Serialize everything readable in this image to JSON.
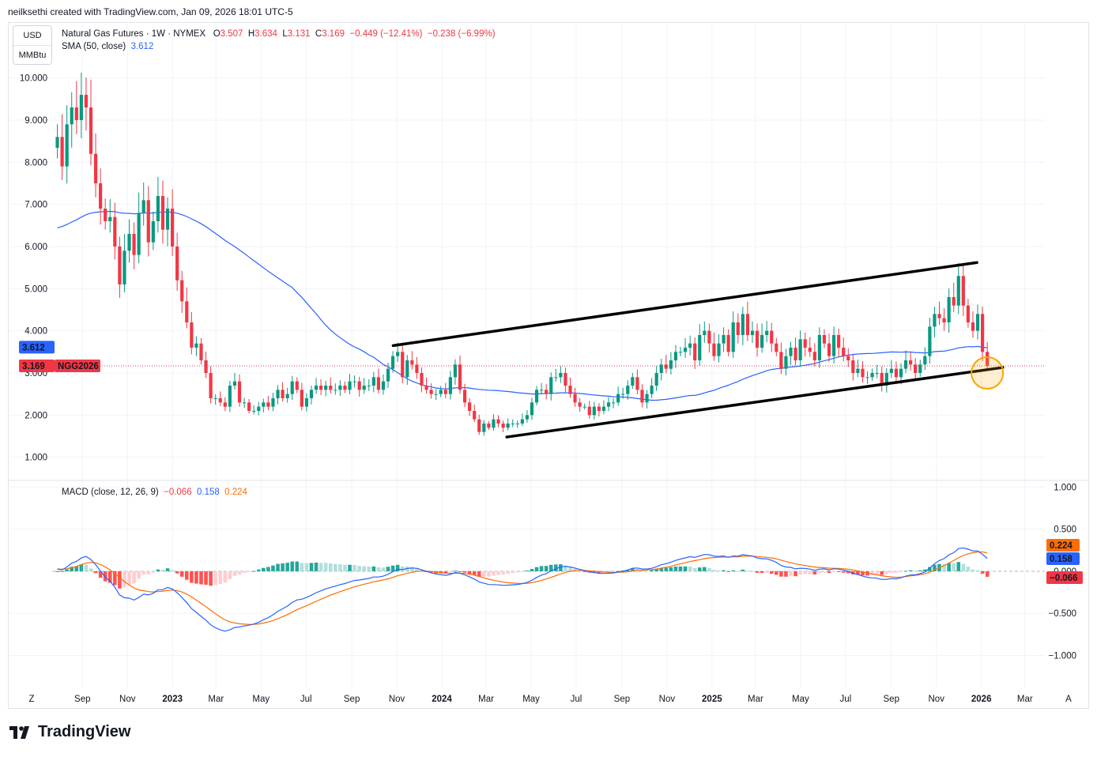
{
  "header": {
    "attribution": "neilksethi created with TradingView.com, Jan 09, 2026 18:01 UTC-5"
  },
  "currency": {
    "top": "USD",
    "bottom": "MMBtu"
  },
  "legend": {
    "symbol": "Natural Gas Futures · 1W · NYMEX",
    "open_label": "O",
    "open": "3.507",
    "high_label": "H",
    "high": "3.634",
    "low_label": "L",
    "low": "3.131",
    "close_label": "C",
    "close": "3.169",
    "change": "−0.449 (−12.41%)",
    "change2": "−0.238 (−6.99%)",
    "sma_label": "SMA (50, close)",
    "sma_value": "3.612"
  },
  "macd_legend": {
    "label": "MACD (close, 12, 26, 9)",
    "hist": "−0.066",
    "macd": "0.158",
    "signal": "0.224"
  },
  "badges": {
    "sma": "3.612",
    "price": "3.169",
    "ticker": "NGG2026",
    "signal": "0.224",
    "macd": "0.158",
    "hist": "−0.066"
  },
  "corner": {
    "left": "Z",
    "right": "A"
  },
  "brand": {
    "name": "TradingView"
  },
  "colors": {
    "up": "#089981",
    "down": "#f23645",
    "sma": "#2962ff",
    "signal": "#ff6d00",
    "highlight": "#f7a600"
  },
  "chart_data": [
    {
      "type": "candlestick",
      "title": "Natural Gas Futures · 1W · NYMEX",
      "y_ticks": [
        "10.000",
        "9.000",
        "8.000",
        "7.000",
        "6.000",
        "5.000",
        "4.000",
        "3.000",
        "2.000",
        "1.000"
      ],
      "ylim": [
        0.6,
        10.35
      ],
      "x_ticks": [
        {
          "label": "Sep",
          "x": "2022-09-01"
        },
        {
          "label": "Nov",
          "x": "2022-11-01"
        },
        {
          "label": "2023",
          "x": "2023-01-01",
          "bold": true
        },
        {
          "label": "Mar",
          "x": "2023-03-01"
        },
        {
          "label": "May",
          "x": "2023-05-01"
        },
        {
          "label": "Jul",
          "x": "2023-07-01"
        },
        {
          "label": "Sep",
          "x": "2023-09-01"
        },
        {
          "label": "Nov",
          "x": "2023-11-01"
        },
        {
          "label": "2024",
          "x": "2024-01-01",
          "bold": true
        },
        {
          "label": "Mar",
          "x": "2024-03-01"
        },
        {
          "label": "May",
          "x": "2024-05-01"
        },
        {
          "label": "Jul",
          "x": "2024-07-01"
        },
        {
          "label": "Sep",
          "x": "2024-09-01"
        },
        {
          "label": "Nov",
          "x": "2024-11-01"
        },
        {
          "label": "2025",
          "x": "2025-01-01",
          "bold": true
        },
        {
          "label": "Mar",
          "x": "2025-03-01"
        },
        {
          "label": "May",
          "x": "2025-05-01"
        },
        {
          "label": "Jul",
          "x": "2025-07-01"
        },
        {
          "label": "Sep",
          "x": "2025-09-01"
        },
        {
          "label": "Nov",
          "x": "2025-11-01"
        },
        {
          "label": "2026",
          "x": "2026-01-01",
          "bold": true
        },
        {
          "label": "Mar",
          "x": "2026-03-01"
        }
      ],
      "closes": [
        8.6,
        7.9,
        8.9,
        9.3,
        9.0,
        9.6,
        9.3,
        8.2,
        7.5,
        6.9,
        6.6,
        6.7,
        6.0,
        5.1,
        5.9,
        6.3,
        5.8,
        6.8,
        7.1,
        6.1,
        6.6,
        7.2,
        6.4,
        6.9,
        6.0,
        5.2,
        4.7,
        4.2,
        3.6,
        3.7,
        3.3,
        3.0,
        2.4,
        2.4,
        2.3,
        2.2,
        2.7,
        2.8,
        2.3,
        2.3,
        2.1,
        2.1,
        2.2,
        2.3,
        2.2,
        2.4,
        2.6,
        2.4,
        2.5,
        2.8,
        2.6,
        2.2,
        2.4,
        2.6,
        2.7,
        2.6,
        2.7,
        2.6,
        2.6,
        2.7,
        2.6,
        2.8,
        2.8,
        2.6,
        2.7,
        2.7,
        2.9,
        2.6,
        2.8,
        3.1,
        3.4,
        3.5,
        2.9,
        3.3,
        3.2,
        3.0,
        2.7,
        2.6,
        2.5,
        2.5,
        2.6,
        2.5,
        2.9,
        3.2,
        2.6,
        2.3,
        2.1,
        1.9,
        1.6,
        1.8,
        1.7,
        1.9,
        1.8,
        1.7,
        1.8,
        1.8,
        1.8,
        1.9,
        2.0,
        2.3,
        2.6,
        2.6,
        2.5,
        2.9,
        2.9,
        3.0,
        2.7,
        2.5,
        2.3,
        2.2,
        2.2,
        2.0,
        2.2,
        2.1,
        2.2,
        2.3,
        2.3,
        2.5,
        2.5,
        2.7,
        2.9,
        2.6,
        2.3,
        2.5,
        2.7,
        3.0,
        3.2,
        3.1,
        3.3,
        3.5,
        3.5,
        3.6,
        3.7,
        3.3,
        3.9,
        4.0,
        3.7,
        3.4,
        3.7,
        3.9,
        3.5,
        4.2,
        3.9,
        4.4,
        3.9,
        4.0,
        3.6,
        3.9,
        4.0,
        3.7,
        3.5,
        3.1,
        3.4,
        3.6,
        3.3,
        3.8,
        3.6,
        3.5,
        3.3,
        3.9,
        3.7,
        3.4,
        3.9,
        3.6,
        3.4,
        3.3,
        3.0,
        3.1,
        2.9,
        2.9,
        3.0,
        3.0,
        2.7,
        3.0,
        3.1,
        2.9,
        3.1,
        3.3,
        3.2,
        3.0,
        3.2,
        3.4,
        4.1,
        4.4,
        4.3,
        4.2,
        4.8,
        4.6,
        5.3,
        4.6,
        4.2,
        4.0,
        4.4,
        3.5,
        3.169
      ],
      "sma": {
        "name": "SMA (50, close)",
        "last": 3.612
      },
      "trendlines": [
        {
          "from": {
            "x": "2023-10-27",
            "y": 3.65
          },
          "to": {
            "x": "2025-12-26",
            "y": 5.62
          }
        },
        {
          "from": {
            "x": "2024-03-29",
            "y": 1.48
          },
          "to": {
            "x": "2026-01-30",
            "y": 3.13
          }
        }
      ],
      "annotation": {
        "type": "circle",
        "x": "2026-01-09",
        "y": 3.0
      }
    },
    {
      "type": "line+bar",
      "title": "MACD (close, 12, 26, 9)",
      "y_ticks": [
        "1.000",
        "0.500",
        "0.000",
        "−0.500",
        "−1.000"
      ],
      "ylim": [
        -1.38,
        1.06
      ],
      "series": [
        {
          "name": "MACD",
          "last": 0.158
        },
        {
          "name": "Signal",
          "last": 0.224
        },
        {
          "name": "Histogram",
          "last": -0.066
        }
      ]
    }
  ]
}
